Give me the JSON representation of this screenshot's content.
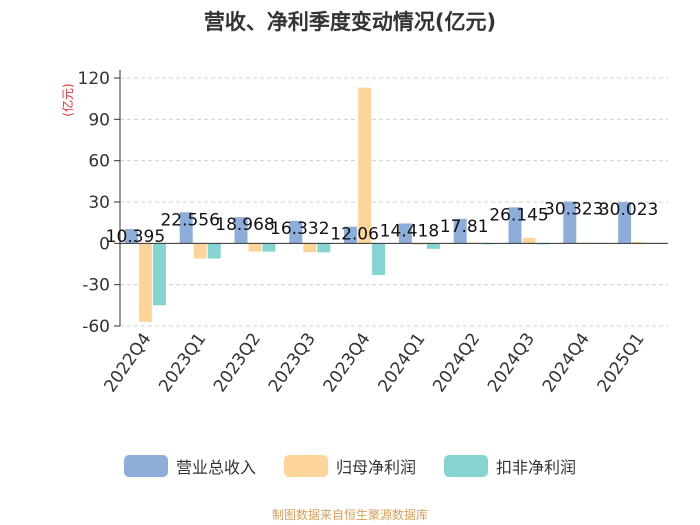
{
  "chart_data": {
    "type": "bar",
    "title": "营收、净利季度变动情况(亿元)",
    "ylabel": "(亿元)",
    "xlabel": "",
    "ylim": [
      -60,
      120
    ],
    "yticks": [
      -60,
      -30,
      0,
      30,
      60,
      90,
      120
    ],
    "categories": [
      "2022Q4",
      "2023Q1",
      "2023Q2",
      "2023Q3",
      "2023Q4",
      "2024Q1",
      "2024Q2",
      "2024Q3",
      "2024Q4",
      "2025Q1"
    ],
    "series": [
      {
        "name": "营业总收入",
        "color": "#8eadd8",
        "values": [
          10.395,
          22.556,
          18.968,
          16.332,
          12.06,
          14.418,
          17.81,
          26.145,
          30.323,
          30.023
        ]
      },
      {
        "name": "归母净利润",
        "color": "#fdd49a",
        "values": [
          -57.0,
          -11.0,
          -6.0,
          -6.5,
          113.0,
          -1.0,
          0.5,
          4.0,
          0.5,
          1.0
        ]
      },
      {
        "name": "扣非净利润",
        "color": "#86d4d2",
        "values": [
          -45.0,
          -11.0,
          -6.0,
          -6.5,
          -23.0,
          -4.0,
          -0.5,
          -0.5,
          0.3,
          0.3
        ]
      }
    ],
    "data_labels": [
      "10.395",
      "22.556",
      "18.968",
      "16.332",
      "12.06",
      "14.418",
      "17.81",
      "26.145",
      "30.323",
      "30.023"
    ],
    "legend_position": "bottom",
    "grid": true
  },
  "source_note": "制图数据来自恒生聚源数据库"
}
